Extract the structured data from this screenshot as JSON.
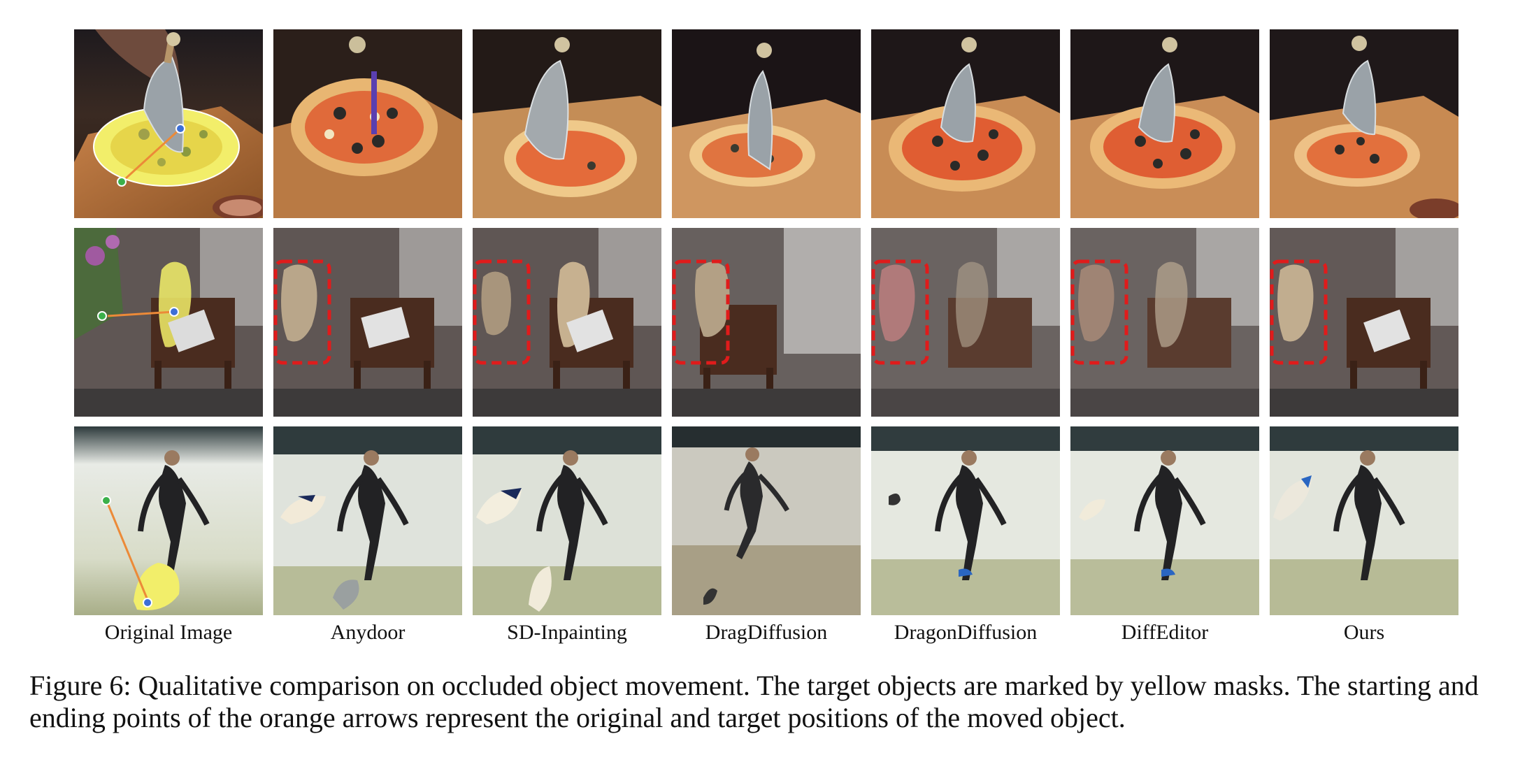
{
  "columns": [
    "Original Image",
    "Anydoor",
    "SD-Inpainting",
    "DragDiffusion",
    "DragonDiffusion",
    "DiffEditor",
    "Ours"
  ],
  "rows": [
    "pizza",
    "teddy-bear",
    "surfboard"
  ],
  "caption": "Figure 6: Qualitative comparison on occluded object movement. The target objects are marked by yellow masks. The starting and ending points of the orange arrows represent the original and target positions of the moved object.",
  "colors": {
    "mask": "#f2ee6a",
    "arrow": "#ec8a38",
    "start_point": "#3d6fd6",
    "end_point": "#3bb04a",
    "highlight_box": "#e01b1b"
  },
  "icons": {
    "start": "blue-dot",
    "end": "green-dot"
  }
}
